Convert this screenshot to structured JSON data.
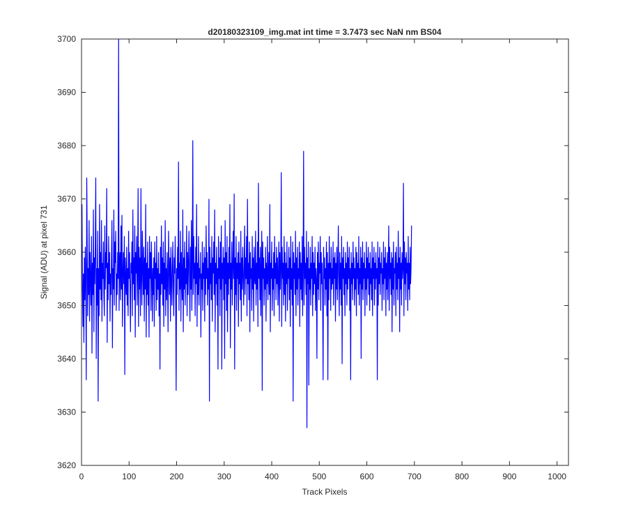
{
  "chart_data": {
    "type": "line",
    "title": "d20180323109_img.mat int time = 3.7473 sec  NaN nm BS04",
    "xlabel": "Track Pixels",
    "ylabel": "Signal (ADU) at pixel 731",
    "xlim": [
      0,
      1024
    ],
    "ylim": [
      3620,
      3700
    ],
    "xticks": [
      0,
      100,
      200,
      300,
      400,
      500,
      600,
      700,
      800,
      900,
      1000
    ],
    "yticks": [
      3620,
      3630,
      3640,
      3650,
      3660,
      3670,
      3680,
      3690,
      3700
    ],
    "grid": false,
    "series": [
      {
        "color": "#0000ff",
        "x_start": 1,
        "x_step": 1,
        "y": [
          3669,
          3653,
          3646,
          3656,
          3643,
          3659,
          3651,
          3661,
          3654,
          3636,
          3674,
          3662,
          3648,
          3657,
          3652,
          3666,
          3647,
          3660,
          3655,
          3650,
          3663,
          3641,
          3658,
          3652,
          3668,
          3645,
          3659,
          3654,
          3662,
          3674,
          3640,
          3657,
          3650,
          3664,
          3632,
          3657,
          3648,
          3669,
          3653,
          3660,
          3651,
          3666,
          3647,
          3658,
          3655,
          3662,
          3652,
          3648,
          3665,
          3653,
          3660,
          3657,
          3672,
          3643,
          3658,
          3651,
          3663,
          3654,
          3660,
          3647,
          3656,
          3652,
          3659,
          3666,
          3642,
          3657,
          3653,
          3668,
          3650,
          3662,
          3658,
          3664,
          3649,
          3656,
          3652,
          3660,
          3655,
          3700,
          3649,
          3658,
          3660,
          3651,
          3665,
          3653,
          3667,
          3646,
          3656,
          3660,
          3654,
          3663,
          3637,
          3659,
          3655,
          3652,
          3661,
          3650,
          3657,
          3648,
          3664,
          3655,
          3660,
          3653,
          3645,
          3658,
          3656,
          3662,
          3648,
          3668,
          3654,
          3659,
          3651,
          3665,
          3644,
          3660,
          3656,
          3663,
          3650,
          3657,
          3672,
          3646,
          3661,
          3653,
          3659,
          3648,
          3672,
          3655,
          3650,
          3664,
          3657,
          3652,
          3661,
          3647,
          3659,
          3653,
          3669,
          3644,
          3658,
          3652,
          3662,
          3650,
          3657,
          3644,
          3663,
          3655,
          3660,
          3649,
          3662,
          3656,
          3647,
          3657,
          3652,
          3659,
          3646,
          3662,
          3655,
          3658,
          3649,
          3663,
          3651,
          3657,
          3653,
          3660,
          3648,
          3656,
          3638,
          3661,
          3652,
          3665,
          3654,
          3659,
          3650,
          3662,
          3646,
          3658,
          3653,
          3666,
          3648,
          3657,
          3651,
          3660,
          3655,
          3645,
          3664,
          3658,
          3652,
          3659,
          3647,
          3661,
          3655,
          3650,
          3657,
          3662,
          3653,
          3648,
          3659,
          3656,
          3663,
          3651,
          3634,
          3657,
          3652,
          3661,
          3655,
          3677,
          3649,
          3658,
          3653,
          3664,
          3647,
          3660,
          3655,
          3651,
          3668,
          3645,
          3659,
          3653,
          3662,
          3650,
          3657,
          3654,
          3665,
          3648,
          3660,
          3652,
          3658,
          3664,
          3655,
          3647,
          3661,
          3653,
          3666,
          3649,
          3657,
          3681,
          3652,
          3663,
          3655,
          3658,
          3648,
          3661,
          3654,
          3669,
          3646,
          3658,
          3652,
          3663,
          3650,
          3657,
          3655,
          3660,
          3644,
          3656,
          3653,
          3662,
          3649,
          3658,
          3655,
          3661,
          3647,
          3659,
          3652,
          3665,
          3655,
          3660,
          3650,
          3657,
          3653,
          3670,
          3632,
          3661,
          3654,
          3658,
          3651,
          3663,
          3647,
          3659,
          3656,
          3662,
          3652,
          3668,
          3645,
          3658,
          3654,
          3661,
          3650,
          3657,
          3638,
          3663,
          3655,
          3659,
          3648,
          3662,
          3653,
          3665,
          3638,
          3658,
          3655,
          3661,
          3651,
          3659,
          3640,
          3666,
          3654,
          3660,
          3649,
          3663,
          3645,
          3658,
          3652,
          3661,
          3655,
          3669,
          3642,
          3658,
          3653,
          3662,
          3650,
          3657,
          3664,
          3655,
          3671,
          3638,
          3659,
          3652,
          3663,
          3649,
          3658,
          3655,
          3660,
          3646,
          3662,
          3654,
          3658,
          3651,
          3664,
          3647,
          3659,
          3653,
          3661,
          3656,
          3650,
          3657,
          3665,
          3652,
          3659,
          3655,
          3663,
          3648,
          3670,
          3654,
          3658,
          3651,
          3662,
          3645,
          3660,
          3655,
          3657,
          3649,
          3663,
          3653,
          3659,
          3647,
          3661,
          3655,
          3654,
          3664,
          3650,
          3658,
          3653,
          3662,
          3646,
          3673,
          3655,
          3659,
          3651,
          3661,
          3648,
          3657,
          3664,
          3634,
          3662,
          3655,
          3659,
          3650,
          3657,
          3653,
          3661,
          3647,
          3658,
          3654,
          3663,
          3651,
          3656,
          3660,
          3652,
          3669,
          3645,
          3658,
          3655,
          3662,
          3649,
          3657,
          3653,
          3660,
          3648,
          3663,
          3655,
          3658,
          3651,
          3661,
          3654,
          3659,
          3650,
          3656,
          3662,
          3647,
          3660,
          3653,
          3657,
          3675,
          3646,
          3661,
          3655,
          3658,
          3650,
          3663,
          3652,
          3660,
          3647,
          3658,
          3654,
          3662,
          3649,
          3657,
          3655,
          3661,
          3651,
          3659,
          3646,
          3663,
          3653,
          3657,
          3650,
          3662,
          3632,
          3660,
          3655,
          3658,
          3652,
          3664,
          3648,
          3659,
          3653,
          3661,
          3650,
          3657,
          3655,
          3662,
          3646,
          3660,
          3653,
          3658,
          3651,
          3663,
          3648,
          3657,
          3679,
          3650,
          3661,
          3655,
          3658,
          3652,
          3664,
          3627,
          3659,
          3654,
          3662,
          3635,
          3657,
          3653,
          3661,
          3650,
          3658,
          3655,
          3663,
          3648,
          3660,
          3652,
          3658,
          3654,
          3661,
          3649,
          3657,
          3655,
          3640,
          3660,
          3653,
          3662,
          3651,
          3658,
          3656,
          3663,
          3649,
          3660,
          3654,
          3658,
          3652,
          3636,
          3661,
          3655,
          3659,
          3650,
          3657,
          3653,
          3662,
          3648,
          3660,
          3636,
          3658,
          3651,
          3663,
          3655,
          3658,
          3649,
          3661,
          3653,
          3657,
          3654,
          3662,
          3650,
          3659,
          3655,
          3660,
          3647,
          3658,
          3653,
          3661,
          3651,
          3657,
          3665,
          3655,
          3648,
          3660,
          3653,
          3658,
          3650,
          3663,
          3639,
          3659,
          3655,
          3661,
          3652,
          3657,
          3648,
          3660,
          3654,
          3658,
          3650,
          3662,
          3653,
          3659,
          3655,
          3661,
          3649,
          3657,
          3636,
          3660,
          3654,
          3658,
          3651,
          3662,
          3655,
          3659,
          3650,
          3657,
          3653,
          3661,
          3648,
          3660,
          3655,
          3658,
          3652,
          3663,
          3650,
          3657,
          3654,
          3661,
          3640,
          3659,
          3653,
          3662,
          3651,
          3658,
          3655,
          3660,
          3648,
          3657,
          3653,
          3662,
          3650,
          3659,
          3655,
          3661,
          3652,
          3658,
          3649,
          3660,
          3654,
          3657,
          3651,
          3662,
          3648,
          3659,
          3655,
          3661,
          3650,
          3658,
          3653,
          3660,
          3655,
          3657,
          3636,
          3662,
          3650,
          3659,
          3654,
          3661,
          3652,
          3658,
          3656,
          3660,
          3649,
          3657,
          3654,
          3662,
          3651,
          3659,
          3655,
          3661,
          3648,
          3658,
          3653,
          3660,
          3651,
          3657,
          3665,
          3649,
          3661,
          3655,
          3658,
          3652,
          3660,
          3645,
          3659,
          3653,
          3662,
          3650,
          3657,
          3656,
          3660,
          3648,
          3661,
          3653,
          3658,
          3651,
          3664,
          3655,
          3659,
          3645,
          3661,
          3653,
          3658,
          3650,
          3660,
          3655,
          3657,
          3673,
          3648,
          3662,
          3654,
          3659,
          3651,
          3660,
          3656,
          3658,
          3649,
          3663,
          3653,
          3658,
          3651,
          3661,
          3654,
          3657,
          3665
        ]
      }
    ]
  }
}
